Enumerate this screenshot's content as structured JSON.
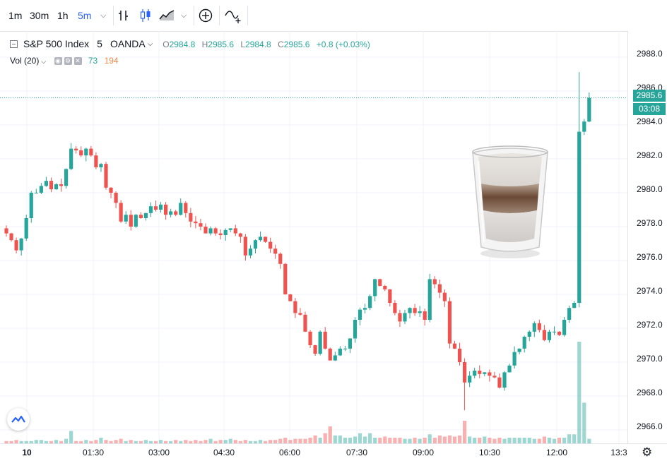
{
  "toolbar": {
    "intervals": [
      "1m",
      "30m",
      "1h",
      "5m"
    ],
    "active_interval": "5m"
  },
  "legend": {
    "symbol": "S&P 500 Index",
    "interval": "5",
    "source": "OANDA",
    "o_key": "O",
    "o_val": "2984.8",
    "h_key": "H",
    "h_val": "2985.6",
    "l_key": "L",
    "l_val": "2984.8",
    "c_key": "C",
    "c_val": "2985.6",
    "change": "+0.8 (+0.03%)"
  },
  "volume_legend": {
    "label": "Vol (20)",
    "v1": "73",
    "v2": "194"
  },
  "price_axis": {
    "labels": [
      "2988.0",
      "2986.0",
      "2984.0",
      "2982.0",
      "2980.0",
      "2978.0",
      "2976.0",
      "2974.0",
      "2972.0",
      "2970.0",
      "2968.0",
      "2966.0"
    ],
    "last_price": "2985.6",
    "countdown": "03:08"
  },
  "time_axis": {
    "labels": [
      "10",
      "01:30",
      "03:00",
      "04:30",
      "06:00",
      "07:30",
      "09:00",
      "10:30",
      "12:00",
      "13:3"
    ]
  },
  "colors": {
    "up": "#26a69a",
    "down": "#ef5350",
    "accent": "#2962ff"
  },
  "chart_data": {
    "type": "candlestick",
    "y_range": [
      2965.2,
      2990.2
    ],
    "closes": [
      2977.6,
      2977.2,
      2976.6,
      2977.3,
      2978.5,
      2980.0,
      2980.0,
      2980.4,
      2980.7,
      2980.2,
      2980.5,
      2980.4,
      2981.4,
      2982.6,
      2982.5,
      2982.2,
      2982.6,
      2982.2,
      2981.5,
      2981.7,
      2980.3,
      2980.0,
      2979.4,
      2978.3,
      2978.7,
      2978.0,
      2978.7,
      2978.5,
      2978.8,
      2979.2,
      2979.0,
      2979.3,
      2978.7,
      2978.9,
      2978.7,
      2979.4,
      2978.8,
      2978.3,
      2978.2,
      2978.0,
      2977.6,
      2977.9,
      2977.6,
      2977.5,
      2977.8,
      2977.9,
      2977.6,
      2977.4,
      2976.3,
      2976.7,
      2977.2,
      2977.4,
      2977.1,
      2976.7,
      2976.4,
      2975.8,
      2974.0,
      2973.6,
      2972.9,
      2972.8,
      2971.8,
      2971.0,
      2970.5,
      2971.8,
      2970.8,
      2970.1,
      2970.4,
      2970.8,
      2970.8,
      2971.4,
      2972.5,
      2973.1,
      2973.2,
      2973.9,
      2974.9,
      2974.5,
      2974.3,
      2973.5,
      2972.9,
      2972.4,
      2972.9,
      2973.2,
      2972.9,
      2973.0,
      2972.5,
      2974.9,
      2974.6,
      2974.1,
      2973.6,
      2971.1,
      2970.8,
      2970.0,
      2968.8,
      2969.2,
      2969.5,
      2969.3,
      2969.4,
      2969.2,
      2969.1,
      2968.5,
      2969.4,
      2969.8,
      2970.6,
      2970.8,
      2971.5,
      2971.8,
      2972.3,
      2971.9,
      2971.3,
      2971.8,
      2971.8,
      2971.6,
      2972.5,
      2973.2,
      2973.5,
      2983.6,
      2984.2,
      2985.6
    ]
  },
  "volume_data": [
    2,
    2,
    3,
    2,
    2,
    2,
    3,
    3,
    2,
    2,
    3,
    2,
    4,
    11,
    2,
    2,
    3,
    2,
    3,
    5,
    3,
    2,
    3,
    4,
    2,
    3,
    2,
    2,
    3,
    2,
    2,
    3,
    2,
    2,
    3,
    2,
    3,
    2,
    3,
    2,
    3,
    4,
    2,
    3,
    3,
    4,
    3,
    2,
    3,
    2,
    2,
    3,
    2,
    3,
    3,
    4,
    5,
    3,
    4,
    4,
    4,
    5,
    7,
    5,
    9,
    15,
    7,
    7,
    5,
    5,
    6,
    9,
    6,
    9,
    5,
    5,
    6,
    5,
    5,
    5,
    4,
    4,
    5,
    4,
    5,
    8,
    5,
    7,
    6,
    7,
    6,
    7,
    20,
    6,
    5,
    5,
    6,
    5,
    4,
    5,
    4,
    5,
    5,
    5,
    5,
    5,
    4,
    4,
    6,
    5,
    4,
    5,
    5,
    8,
    8,
    90,
    36,
    4
  ]
}
